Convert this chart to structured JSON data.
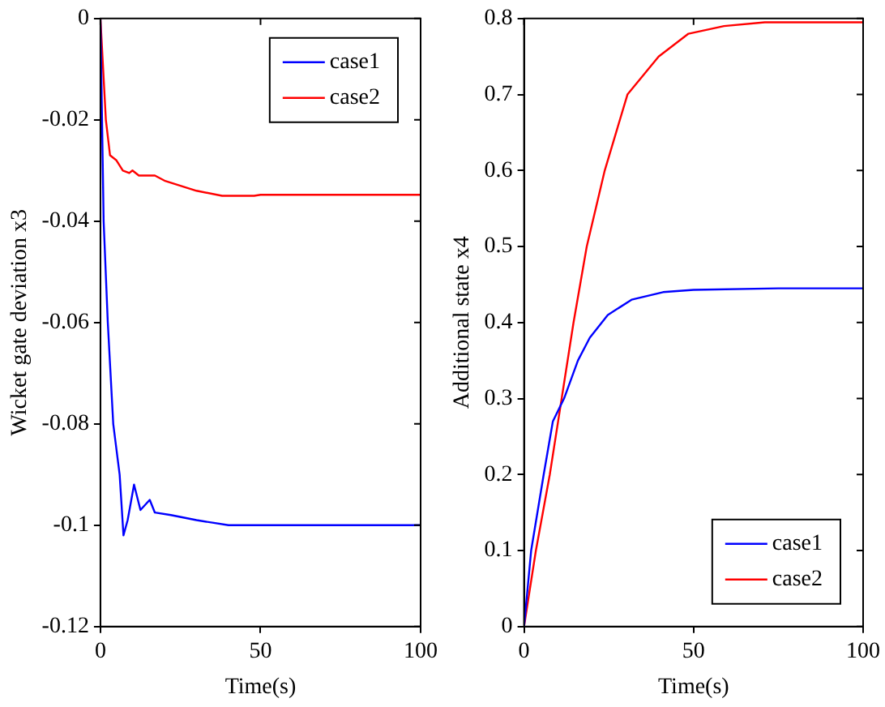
{
  "chart_data": [
    {
      "type": "line",
      "xlabel": "Time(s)",
      "ylabel": "Wicket gate deviation x3",
      "xlim": [
        0,
        100
      ],
      "xticks": [
        0,
        50,
        100
      ],
      "ylim": [
        -0.12,
        0
      ],
      "yticks": [
        -0.12,
        -0.1,
        -0.08,
        -0.06,
        -0.04,
        -0.02,
        0
      ],
      "legend": "top right",
      "grid": false,
      "marker": "none",
      "line_style": "solid",
      "series": [
        {
          "name": "case1",
          "color": "#0000ff",
          "x": [
            0,
            1,
            2.3,
            4,
            6,
            7.2,
            8.5,
            10.5,
            12.5,
            15.4,
            17,
            22,
            30,
            35,
            40,
            100
          ],
          "values": [
            0,
            -0.04,
            -0.06,
            -0.08,
            -0.09,
            -0.102,
            -0.099,
            -0.092,
            -0.097,
            -0.095,
            -0.0975,
            -0.098,
            -0.099,
            -0.0995,
            -0.1,
            -0.1
          ]
        },
        {
          "name": "case2",
          "color": "#ff0000",
          "x": [
            0,
            1.7,
            3,
            5,
            7,
            9,
            10,
            12,
            17,
            20,
            25,
            30,
            38,
            48,
            50,
            100
          ],
          "values": [
            0,
            -0.02,
            -0.027,
            -0.028,
            -0.03,
            -0.0305,
            -0.03,
            -0.031,
            -0.031,
            -0.032,
            -0.033,
            -0.034,
            -0.035,
            -0.035,
            -0.0348,
            -0.0348
          ]
        }
      ]
    },
    {
      "type": "line",
      "xlabel": "Time(s)",
      "ylabel": "Additional state x4",
      "xlim": [
        0,
        100
      ],
      "xticks": [
        0,
        50,
        100
      ],
      "ylim": [
        0,
        0.8
      ],
      "yticks": [
        0,
        0.1,
        0.2,
        0.3,
        0.4,
        0.5,
        0.6,
        0.7,
        0.8
      ],
      "legend": "bottom right",
      "grid": false,
      "marker": "none",
      "line_style": "solid",
      "series": [
        {
          "name": "case1",
          "color": "#0000ff",
          "x": [
            0,
            2.1,
            5.8,
            8.5,
            11.8,
            15.9,
            19.4,
            24.7,
            31.7,
            41,
            50,
            75,
            100
          ],
          "values": [
            0,
            0.1,
            0.2,
            0.27,
            0.3,
            0.35,
            0.38,
            0.41,
            0.43,
            0.44,
            0.443,
            0.445,
            0.445
          ]
        },
        {
          "name": "case2",
          "color": "#ff0000",
          "x": [
            0,
            3.5,
            7.6,
            11.1,
            14.6,
            18.5,
            23.8,
            30.5,
            39.7,
            48.5,
            59,
            71,
            100
          ],
          "values": [
            0,
            0.1,
            0.2,
            0.3,
            0.4,
            0.5,
            0.6,
            0.7,
            0.75,
            0.78,
            0.79,
            0.795,
            0.795
          ]
        }
      ]
    }
  ]
}
